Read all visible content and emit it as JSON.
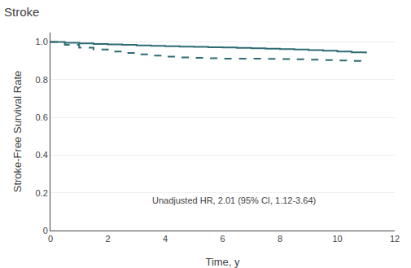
{
  "chart_data": {
    "type": "line",
    "title": "Stroke",
    "xlabel": "Time, y",
    "ylabel": "Stroke-Free Survival Rate",
    "annotation": "Unadjusted HR, 2.01 (95% CI, 1.12-3.64)",
    "x": [
      0,
      0.5,
      1,
      1.5,
      2,
      2.5,
      3,
      3.5,
      4,
      4.5,
      5,
      5.5,
      6,
      6.5,
      7,
      7.5,
      8,
      8.5,
      9,
      9.5,
      10,
      10.5,
      11
    ],
    "series": [
      {
        "color": "#2e6b73",
        "line_style": "solid",
        "values": [
          1.0,
          0.996,
          0.993,
          0.99,
          0.987,
          0.985,
          0.982,
          0.98,
          0.978,
          0.976,
          0.974,
          0.972,
          0.971,
          0.969,
          0.967,
          0.965,
          0.963,
          0.96,
          0.957,
          0.954,
          0.95,
          0.945,
          0.94
        ]
      },
      {
        "color": "#2e6b73",
        "line_style": "dashed",
        "values": [
          1.0,
          0.985,
          0.97,
          0.96,
          0.95,
          0.942,
          0.934,
          0.928,
          0.922,
          0.918,
          0.916,
          0.914,
          0.912,
          0.912,
          0.912,
          0.911,
          0.91,
          0.908,
          0.906,
          0.904,
          0.902,
          0.9,
          0.898
        ]
      }
    ],
    "xlim": [
      0,
      12
    ],
    "ylim": [
      0,
      1.05
    ],
    "xticks": [
      0,
      2,
      4,
      6,
      8,
      10,
      12
    ],
    "yticks": [
      0,
      0.2,
      0.4,
      0.6,
      0.8,
      {
        "value": 1.0,
        "label": "1.0"
      }
    ],
    "grid": "y"
  }
}
